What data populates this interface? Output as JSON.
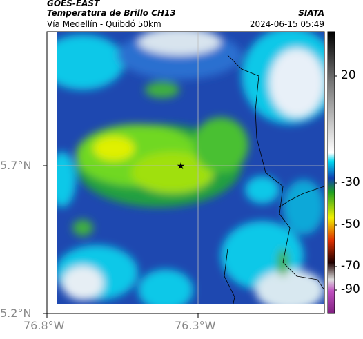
{
  "header": {
    "source": "GOES-EAST",
    "title": "Temperatura de Brillo CH13",
    "subtitle": "Vía Medellín - Quibdó 50km",
    "agency": "SIATA",
    "datetime": "2024-06-15 05:49"
  },
  "map": {
    "lat_labels": [
      "5.7°N",
      "5.2°N"
    ],
    "lon_labels": [
      "76.8°W",
      "76.3°W"
    ]
  },
  "colorbar": {
    "ticks": [
      "20",
      "-30",
      "-50",
      "-70",
      "-90"
    ]
  }
}
